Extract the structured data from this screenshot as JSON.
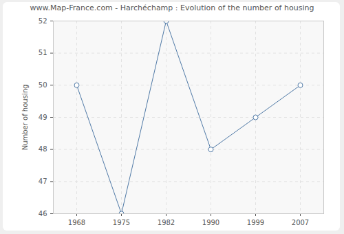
{
  "chart_data": {
    "type": "line",
    "title": "www.Map-France.com - Harchéchamp : Evolution of the number of housing",
    "y_label": "Number of housing",
    "categories": [
      "1968",
      "1975",
      "1982",
      "1990",
      "1999",
      "2007"
    ],
    "values": [
      50,
      46,
      52,
      48,
      49,
      50
    ],
    "color": "#4f79a6",
    "marker": "circle",
    "line_style": "solid",
    "ylim": [
      46,
      52
    ],
    "yticks": [
      46,
      47,
      48,
      49,
      50,
      51,
      52
    ],
    "grid": true
  }
}
